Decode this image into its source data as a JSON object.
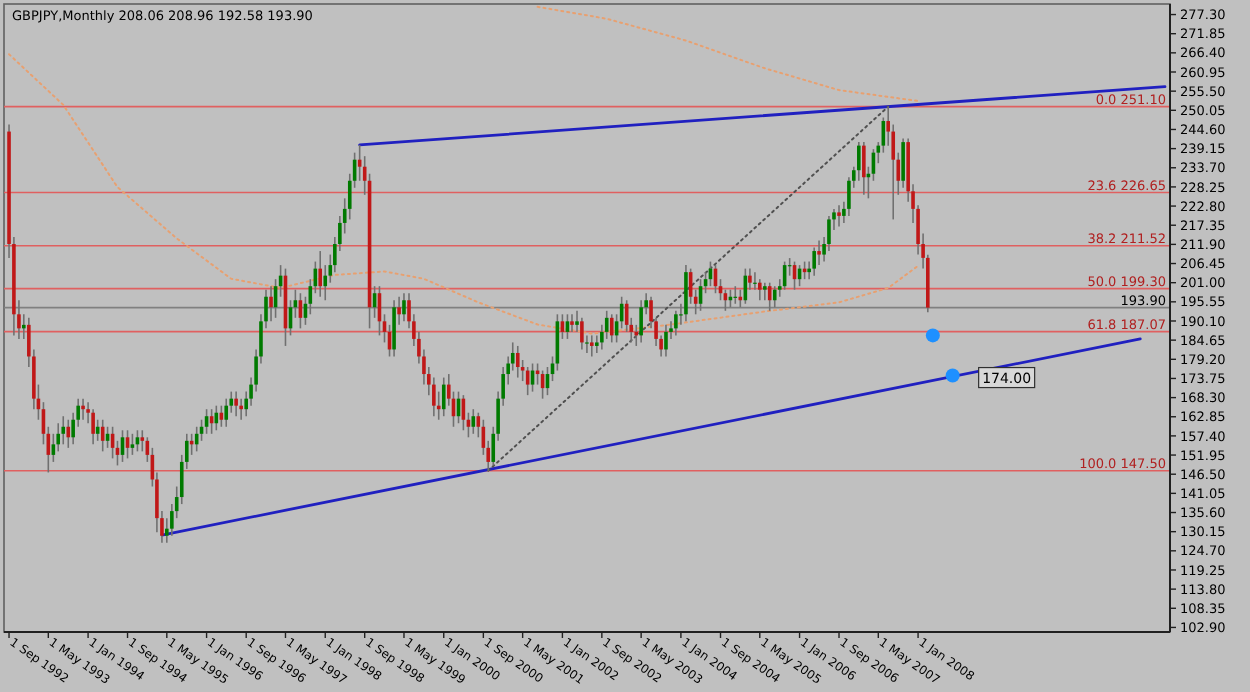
{
  "chart_data": {
    "type": "candlestick",
    "title": "GBPJPY,Monthly 208.06 208.96 192.58 193.90",
    "x": [
      "1992-09",
      "1992-10",
      "1992-11",
      "1992-12",
      "1993-01",
      "1993-02",
      "1993-03",
      "1993-04",
      "1993-05",
      "1993-06",
      "1993-07",
      "1993-08",
      "1993-09",
      "1993-10",
      "1993-11",
      "1993-12",
      "1994-01",
      "1994-02",
      "1994-03",
      "1994-04",
      "1994-05",
      "1994-06",
      "1994-07",
      "1994-08",
      "1994-09",
      "1994-10",
      "1994-11",
      "1994-12",
      "1995-01",
      "1995-02",
      "1995-03",
      "1995-04",
      "1995-05",
      "1995-06",
      "1995-07",
      "1995-08",
      "1995-09",
      "1995-10",
      "1995-11",
      "1995-12",
      "1996-01",
      "1996-02",
      "1996-03",
      "1996-04",
      "1996-05",
      "1996-06",
      "1996-07",
      "1996-08",
      "1996-09",
      "1996-10",
      "1996-11",
      "1996-12",
      "1997-01",
      "1997-02",
      "1997-03",
      "1997-04",
      "1997-05",
      "1997-06",
      "1997-07",
      "1997-08",
      "1997-09",
      "1997-10",
      "1997-11",
      "1997-12",
      "1998-01",
      "1998-02",
      "1998-03",
      "1998-04",
      "1998-05",
      "1998-06",
      "1998-07",
      "1998-08",
      "1998-09",
      "1998-10",
      "1998-11",
      "1998-12",
      "1999-01",
      "1999-02",
      "1999-03",
      "1999-04",
      "1999-05",
      "1999-06",
      "1999-07",
      "1999-08",
      "1999-09",
      "1999-10",
      "1999-11",
      "1999-12",
      "2000-01",
      "2000-02",
      "2000-03",
      "2000-04",
      "2000-05",
      "2000-06",
      "2000-07",
      "2000-08",
      "2000-09",
      "2000-10",
      "2000-11",
      "2000-12",
      "2001-01",
      "2001-02",
      "2001-03",
      "2001-04",
      "2001-05",
      "2001-06",
      "2001-07",
      "2001-08",
      "2001-09",
      "2001-10",
      "2001-11",
      "2001-12",
      "2002-01",
      "2002-02",
      "2002-03",
      "2002-04",
      "2002-05",
      "2002-06",
      "2002-07",
      "2002-08",
      "2002-09",
      "2002-10",
      "2002-11",
      "2002-12",
      "2003-01",
      "2003-02",
      "2003-03",
      "2003-04",
      "2003-05",
      "2003-06",
      "2003-07",
      "2003-08",
      "2003-09",
      "2003-10",
      "2003-11",
      "2003-12",
      "2004-01",
      "2004-02",
      "2004-03",
      "2004-04",
      "2004-05",
      "2004-06",
      "2004-07",
      "2004-08",
      "2004-09",
      "2004-10",
      "2004-11",
      "2004-12",
      "2005-01",
      "2005-02",
      "2005-03",
      "2005-04",
      "2005-05",
      "2005-06",
      "2005-07",
      "2005-08",
      "2005-09",
      "2005-10",
      "2005-11",
      "2005-12",
      "2006-01",
      "2006-02",
      "2006-03",
      "2006-04",
      "2006-05",
      "2006-06",
      "2006-07",
      "2006-08",
      "2006-09",
      "2006-10",
      "2006-11",
      "2006-12",
      "2007-01",
      "2007-02",
      "2007-03",
      "2007-04",
      "2007-05",
      "2007-06",
      "2007-07",
      "2007-08",
      "2007-09",
      "2007-10",
      "2007-11",
      "2007-12",
      "2008-01",
      "2008-02",
      "2008-03"
    ],
    "ohlc": [
      [
        244,
        246,
        208,
        212
      ],
      [
        212,
        214,
        186,
        192
      ],
      [
        192,
        196,
        185,
        188
      ],
      [
        188,
        192,
        185,
        189
      ],
      [
        189,
        191,
        177,
        180
      ],
      [
        180,
        182,
        165,
        168
      ],
      [
        168,
        172,
        162,
        165
      ],
      [
        165,
        167,
        155,
        158
      ],
      [
        158,
        160,
        147,
        152
      ],
      [
        152,
        158,
        150,
        155
      ],
      [
        155,
        161,
        153,
        158
      ],
      [
        158,
        163,
        155,
        160
      ],
      [
        160,
        162,
        154,
        157
      ],
      [
        157,
        164,
        155,
        162
      ],
      [
        162,
        168,
        160,
        166
      ],
      [
        166,
        168,
        162,
        165
      ],
      [
        165,
        167,
        161,
        164
      ],
      [
        164,
        165,
        155,
        158
      ],
      [
        158,
        162,
        156,
        160
      ],
      [
        160,
        162,
        153,
        156
      ],
      [
        156,
        160,
        154,
        158
      ],
      [
        158,
        160,
        151,
        154
      ],
      [
        154,
        156,
        149,
        152
      ],
      [
        152,
        159,
        150,
        157
      ],
      [
        157,
        159,
        151,
        154
      ],
      [
        154,
        158,
        152,
        155
      ],
      [
        155,
        159,
        153,
        157
      ],
      [
        157,
        159,
        153,
        156
      ],
      [
        156,
        157,
        150,
        152
      ],
      [
        152,
        154,
        143,
        145
      ],
      [
        145,
        147,
        130,
        134
      ],
      [
        134,
        136,
        127,
        129
      ],
      [
        129,
        134,
        127,
        131
      ],
      [
        131,
        138,
        129,
        136
      ],
      [
        136,
        143,
        134,
        140
      ],
      [
        140,
        152,
        138,
        150
      ],
      [
        150,
        158,
        148,
        156
      ],
      [
        156,
        158,
        152,
        155
      ],
      [
        155,
        160,
        153,
        158
      ],
      [
        158,
        162,
        156,
        160
      ],
      [
        160,
        165,
        158,
        163
      ],
      [
        163,
        165,
        158,
        161
      ],
      [
        161,
        166,
        159,
        164
      ],
      [
        164,
        166,
        160,
        162
      ],
      [
        162,
        168,
        160,
        166
      ],
      [
        166,
        170,
        164,
        168
      ],
      [
        168,
        170,
        163,
        166
      ],
      [
        166,
        168,
        162,
        165
      ],
      [
        165,
        170,
        163,
        168
      ],
      [
        168,
        174,
        166,
        172
      ],
      [
        172,
        182,
        170,
        180
      ],
      [
        180,
        192,
        178,
        190
      ],
      [
        190,
        199,
        188,
        197
      ],
      [
        197,
        200,
        190,
        194
      ],
      [
        194,
        202,
        191,
        200
      ],
      [
        200,
        206,
        197,
        203
      ],
      [
        203,
        205,
        183,
        188
      ],
      [
        188,
        196,
        186,
        194
      ],
      [
        194,
        199,
        191,
        196
      ],
      [
        196,
        198,
        188,
        191
      ],
      [
        191,
        197,
        189,
        195
      ],
      [
        195,
        202,
        192,
        200
      ],
      [
        200,
        207,
        198,
        205
      ],
      [
        205,
        210,
        197,
        200
      ],
      [
        200,
        206,
        196,
        203
      ],
      [
        203,
        209,
        201,
        206
      ],
      [
        206,
        214,
        204,
        212
      ],
      [
        212,
        220,
        210,
        218
      ],
      [
        218,
        225,
        215,
        222
      ],
      [
        222,
        232,
        219,
        230
      ],
      [
        230,
        238,
        228,
        236
      ],
      [
        236,
        240.2,
        230,
        234
      ],
      [
        234,
        237,
        226,
        230
      ],
      [
        230,
        232,
        188,
        194
      ],
      [
        194,
        200,
        191,
        198
      ],
      [
        198,
        200,
        186,
        190
      ],
      [
        190,
        192,
        184,
        187
      ],
      [
        187,
        189,
        180,
        182
      ],
      [
        182,
        196,
        180,
        194
      ],
      [
        194,
        197,
        189,
        192
      ],
      [
        192,
        198,
        190,
        196
      ],
      [
        196,
        198,
        188,
        190
      ],
      [
        190,
        192,
        183,
        185
      ],
      [
        185,
        187,
        178,
        180
      ],
      [
        180,
        182,
        172,
        175
      ],
      [
        175,
        177,
        169,
        172
      ],
      [
        172,
        174,
        163,
        166
      ],
      [
        166,
        170,
        162,
        165
      ],
      [
        165,
        174,
        163,
        172
      ],
      [
        172,
        175,
        166,
        168
      ],
      [
        168,
        170,
        160,
        163
      ],
      [
        163,
        170,
        161,
        168
      ],
      [
        168,
        169,
        159,
        162
      ],
      [
        162,
        164,
        157,
        160
      ],
      [
        160,
        165,
        158,
        163
      ],
      [
        163,
        164,
        157,
        160
      ],
      [
        160,
        162,
        152,
        154
      ],
      [
        154,
        156,
        147.5,
        150
      ],
      [
        150,
        160,
        149,
        158
      ],
      [
        158,
        170,
        156,
        168
      ],
      [
        168,
        177,
        166,
        175
      ],
      [
        175,
        180,
        172,
        178
      ],
      [
        178,
        184,
        176,
        181
      ],
      [
        181,
        183,
        174,
        177
      ],
      [
        177,
        179,
        173,
        176
      ],
      [
        176,
        177,
        169,
        172
      ],
      [
        172,
        178,
        170,
        176
      ],
      [
        176,
        178,
        172,
        175
      ],
      [
        175,
        176,
        168,
        171
      ],
      [
        171,
        177,
        169,
        175
      ],
      [
        175,
        180,
        173,
        178
      ],
      [
        178,
        192,
        176,
        190
      ],
      [
        190,
        192,
        185,
        187
      ],
      [
        187,
        192,
        185,
        190
      ],
      [
        190,
        192,
        187,
        189
      ],
      [
        189,
        193,
        187,
        190
      ],
      [
        190,
        191,
        182,
        184
      ],
      [
        184,
        186,
        181,
        184
      ],
      [
        184,
        186,
        180,
        183
      ],
      [
        183,
        186,
        181,
        184
      ],
      [
        184,
        189,
        182,
        187
      ],
      [
        187,
        193,
        185,
        191
      ],
      [
        191,
        192,
        184,
        186
      ],
      [
        186,
        192,
        184,
        190
      ],
      [
        190,
        197,
        188,
        195
      ],
      [
        195,
        196,
        187,
        189
      ],
      [
        189,
        191,
        184,
        187
      ],
      [
        187,
        189,
        183,
        186
      ],
      [
        186,
        196,
        184,
        194
      ],
      [
        194,
        198,
        192,
        196
      ],
      [
        196,
        197,
        188,
        190
      ],
      [
        190,
        191,
        183,
        185
      ],
      [
        185,
        186,
        180,
        182
      ],
      [
        182,
        189,
        180,
        187
      ],
      [
        187,
        190,
        185,
        188
      ],
      [
        188,
        193,
        186,
        192
      ],
      [
        192,
        195,
        189,
        192
      ],
      [
        192,
        206,
        190,
        204
      ],
      [
        204,
        205,
        195,
        197
      ],
      [
        197,
        199,
        192,
        195
      ],
      [
        195,
        202,
        193,
        200
      ],
      [
        200,
        204,
        198,
        202
      ],
      [
        202,
        207,
        200,
        205
      ],
      [
        205,
        206,
        198,
        200
      ],
      [
        200,
        202,
        196,
        198
      ],
      [
        198,
        199,
        193,
        196
      ],
      [
        196,
        199,
        194,
        197
      ],
      [
        197,
        200,
        195,
        197
      ],
      [
        197,
        199,
        194,
        196
      ],
      [
        196,
        205,
        195,
        203
      ],
      [
        203,
        205,
        199,
        201
      ],
      [
        201,
        204,
        199,
        201
      ],
      [
        201,
        202,
        196,
        199
      ],
      [
        199,
        201,
        196,
        200
      ],
      [
        200,
        201,
        193,
        196
      ],
      [
        196,
        200,
        194,
        199
      ],
      [
        199,
        202,
        197,
        200
      ],
      [
        200,
        207,
        199,
        206
      ],
      [
        206,
        208,
        203,
        206
      ],
      [
        206,
        207,
        199,
        202
      ],
      [
        202,
        206,
        200,
        205
      ],
      [
        205,
        207,
        202,
        204
      ],
      [
        204,
        207,
        202,
        205
      ],
      [
        205,
        211,
        203,
        210
      ],
      [
        210,
        213,
        206,
        209
      ],
      [
        209,
        214,
        207,
        212
      ],
      [
        212,
        220,
        210,
        219
      ],
      [
        219,
        222,
        216,
        221
      ],
      [
        221,
        223,
        217,
        220
      ],
      [
        220,
        224,
        218,
        222
      ],
      [
        222,
        231,
        220,
        230
      ],
      [
        230,
        234,
        228,
        233
      ],
      [
        233,
        241,
        230,
        240
      ],
      [
        240,
        241,
        226,
        231
      ],
      [
        231,
        234,
        225,
        232
      ],
      [
        232,
        239,
        230,
        238
      ],
      [
        238,
        241,
        235,
        240
      ],
      [
        240,
        248,
        238,
        247
      ],
      [
        247,
        251.1,
        240,
        244
      ],
      [
        244,
        246,
        219,
        236
      ],
      [
        236,
        238,
        226,
        230
      ],
      [
        230,
        242,
        228,
        241
      ],
      [
        241,
        242,
        224,
        227
      ],
      [
        227,
        229,
        218,
        222
      ],
      [
        222,
        223,
        209,
        212
      ],
      [
        212,
        215,
        205,
        208.06
      ],
      [
        208.06,
        208.96,
        192.58,
        193.9
      ]
    ],
    "series": [
      {
        "type": "line",
        "color": "#e8a070",
        "line_style": "dotted",
        "x": [
          "1992-09",
          "1993-08",
          "1994-07",
          "1995-07",
          "1996-06",
          "1997-04",
          "1998-03",
          "1999-01",
          "1999-09",
          "2000-08",
          "2001-08",
          "2002-07",
          "2003-11",
          "2005-06",
          "2006-09",
          "2007-07",
          "2008-01"
        ],
        "values": [
          266,
          251.6,
          228.2,
          213.6,
          202.1,
          199.5,
          203.2,
          204.2,
          202.1,
          195.4,
          189.1,
          186.5,
          189.1,
          192.8,
          195.4,
          199.5,
          205.8
        ]
      },
      {
        "type": "line",
        "color": "#e8a070",
        "line_style": "dotted",
        "x": [
          "2001-08",
          "2002-10",
          "2004-02",
          "2005-06",
          "2006-09",
          "2008-01"
        ],
        "values": [
          279.5,
          276.1,
          269.9,
          262,
          255.8,
          252.7
        ]
      },
      {
        "type": "line",
        "color": "#2020c0",
        "line_style": "solid",
        "x": [
          "1998-08",
          "2012-03"
        ],
        "values": [
          240.2,
          256.8
        ]
      },
      {
        "type": "line",
        "color": "#2020c0",
        "line_style": "solid",
        "x": [
          "1995-04",
          "2011-10"
        ],
        "values": [
          129.2,
          185
        ]
      },
      {
        "type": "line",
        "color": "#505050",
        "line_style": "dotted",
        "x": [
          "2000-10",
          "2007-07"
        ],
        "values": [
          147.5,
          251.1
        ]
      },
      {
        "type": "scatter",
        "color": "#1e90ff",
        "marker": "circle",
        "x": [
          "2008-04",
          "2008-08"
        ],
        "values": [
          186,
          174.6
        ]
      }
    ],
    "xlim": [
      "1992-08",
      "2012-04"
    ],
    "xticks": [
      {
        "value": "1992-09-01",
        "label": "1 Sep 1992"
      },
      {
        "value": "1993-05-01",
        "label": "1 May 1993"
      },
      {
        "value": "1994-01-01",
        "label": "1 Jan 1994"
      },
      {
        "value": "1994-09-01",
        "label": "1 Sep 1994"
      },
      {
        "value": "1995-05-01",
        "label": "1 May 1995"
      },
      {
        "value": "1996-01-01",
        "label": "1 Jan 1996"
      },
      {
        "value": "1996-09-01",
        "label": "1 Sep 1996"
      },
      {
        "value": "1997-05-01",
        "label": "1 May 1997"
      },
      {
        "value": "1998-01-01",
        "label": "1 Jan 1998"
      },
      {
        "value": "1998-09-01",
        "label": "1 Sep 1998"
      },
      {
        "value": "1999-05-01",
        "label": "1 May 1999"
      },
      {
        "value": "2000-01-01",
        "label": "1 Jan 2000"
      },
      {
        "value": "2000-09-01",
        "label": "1 Sep 2000"
      },
      {
        "value": "2001-05-01",
        "label": "1 May 2001"
      },
      {
        "value": "2002-01-01",
        "label": "1 Jan 2002"
      },
      {
        "value": "2002-09-01",
        "label": "1 Sep 2002"
      },
      {
        "value": "2003-05-01",
        "label": "1 May 2003"
      },
      {
        "value": "2004-01-01",
        "label": "1 Jan 2004"
      },
      {
        "value": "2004-09-01",
        "label": "1 Sep 2004"
      },
      {
        "value": "2005-05-01",
        "label": "1 May 2005"
      },
      {
        "value": "2006-01-01",
        "label": "1 Jan 2006"
      },
      {
        "value": "2006-09-01",
        "label": "1 Sep 2006"
      },
      {
        "value": "2007-05-01",
        "label": "1 May 2007"
      },
      {
        "value": "2008-01-01",
        "label": "1 Jan 2008"
      }
    ],
    "ylim": [
      101.6,
      280.3
    ],
    "yticks": [
      {
        "value": 277.3,
        "label": "277.30"
      },
      {
        "value": 271.85,
        "label": "271.85"
      },
      {
        "value": 266.4,
        "label": "266.40"
      },
      {
        "value": 260.95,
        "label": "260.95"
      },
      {
        "value": 255.5,
        "label": "255.50"
      },
      {
        "value": 250.05,
        "label": "250.05"
      },
      {
        "value": 244.6,
        "label": "244.60"
      },
      {
        "value": 239.15,
        "label": "239.15"
      },
      {
        "value": 233.7,
        "label": "233.70"
      },
      {
        "value": 228.25,
        "label": "228.25"
      },
      {
        "value": 222.8,
        "label": "222.80"
      },
      {
        "value": 217.35,
        "label": "217.35"
      },
      {
        "value": 211.9,
        "label": "211.90"
      },
      {
        "value": 206.45,
        "label": "206.45"
      },
      {
        "value": 201,
        "label": "201.00"
      },
      {
        "value": 195.55,
        "label": "195.55"
      },
      {
        "value": 190.1,
        "label": "190.10"
      },
      {
        "value": 184.65,
        "label": "184.65"
      },
      {
        "value": 179.2,
        "label": "179.20"
      },
      {
        "value": 173.75,
        "label": "173.75"
      },
      {
        "value": 168.3,
        "label": "168.30"
      },
      {
        "value": 162.85,
        "label": "162.85"
      },
      {
        "value": 157.4,
        "label": "157.40"
      },
      {
        "value": 151.95,
        "label": "151.95"
      },
      {
        "value": 146.5,
        "label": "146.50"
      },
      {
        "value": 141.05,
        "label": "141.05"
      },
      {
        "value": 135.6,
        "label": "135.60"
      },
      {
        "value": 130.15,
        "label": "130.15"
      },
      {
        "value": 124.7,
        "label": "124.70"
      },
      {
        "value": 119.25,
        "label": "119.25"
      },
      {
        "value": 113.8,
        "label": "113.80"
      },
      {
        "value": 108.35,
        "label": "108.35"
      },
      {
        "value": 102.9,
        "label": "102.90"
      }
    ],
    "ref_lines": [
      {
        "axis": "y",
        "value": 251.1,
        "label": "0.0 251.10",
        "color": "#e06060"
      },
      {
        "axis": "y",
        "value": 226.65,
        "label": "23.6 226.65",
        "color": "#e06060"
      },
      {
        "axis": "y",
        "value": 211.52,
        "label": "38.2 211.52",
        "color": "#e06060"
      },
      {
        "axis": "y",
        "value": 199.3,
        "label": "50.0 199.30",
        "color": "#e06060"
      },
      {
        "axis": "y",
        "value": 187.07,
        "label": "61.8 187.07",
        "color": "#e06060"
      },
      {
        "axis": "y",
        "value": 147.5,
        "label": "100.0 147.50",
        "color": "#e06060"
      },
      {
        "axis": "y",
        "value": 193.9,
        "label": "193.90",
        "color": "#808080"
      }
    ],
    "annotations": [
      {
        "text": "174.00",
        "x": "2008-08",
        "y": 174
      }
    ],
    "grid": false
  }
}
